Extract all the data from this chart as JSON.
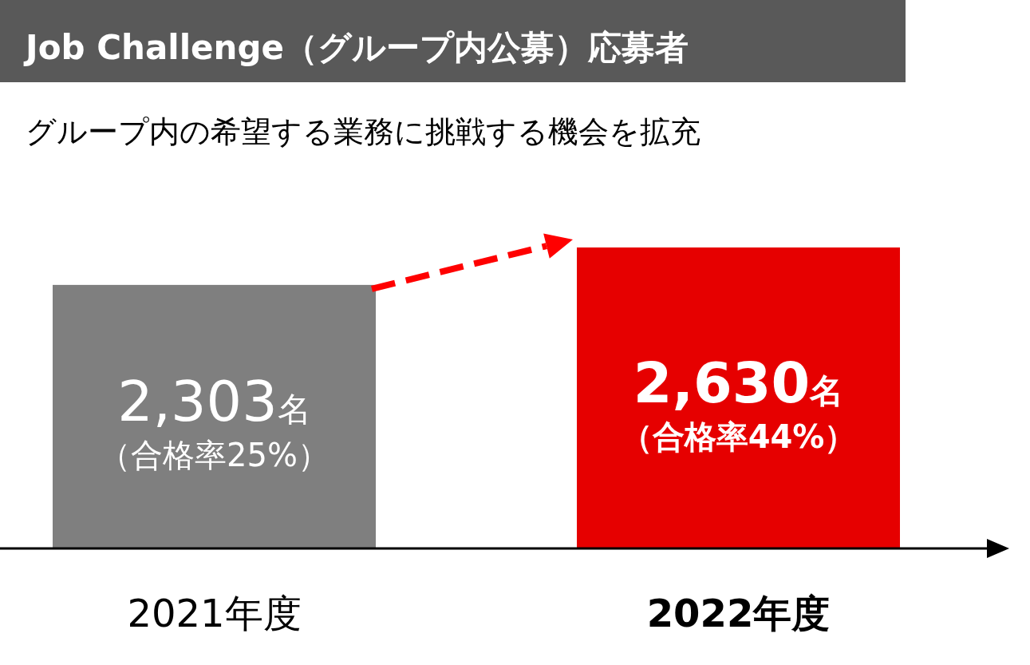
{
  "chart_data": {
    "type": "bar",
    "title": "Job Challenge（グループ内公募）応募者",
    "subtitle": "グループ内の希望する業務に挑戦する機会を拡充",
    "categories": [
      "2021年度",
      "2022年度"
    ],
    "values": [
      2303,
      2630
    ],
    "colors": [
      "#7f7f7f",
      "#e60000"
    ],
    "value_labels": [
      "2,303名",
      "2,630名"
    ],
    "annotations": [
      "（合格率25%）",
      "（合格率44%）"
    ]
  }
}
